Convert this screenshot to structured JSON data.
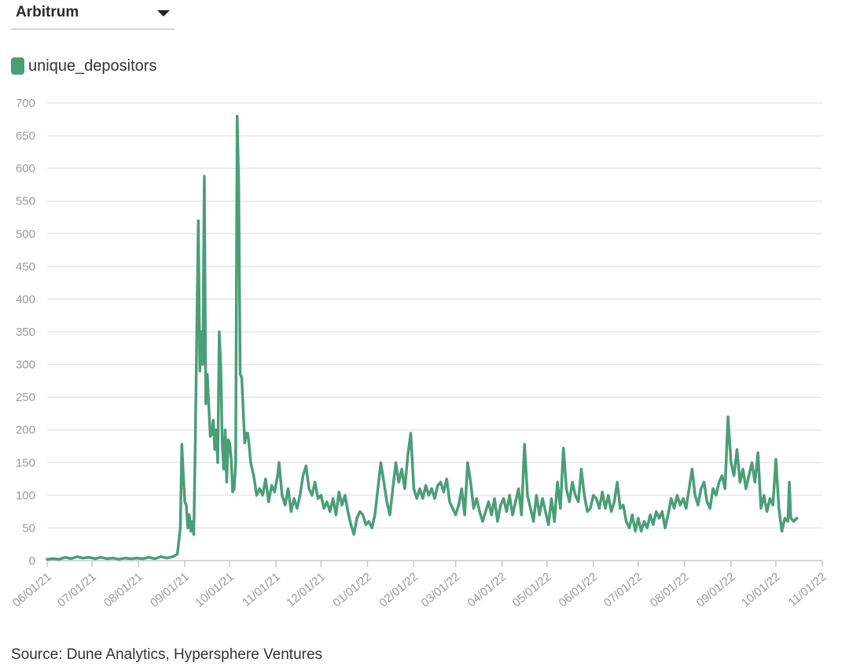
{
  "selector": {
    "value": "Arbitrum",
    "icon": "caret-down-icon"
  },
  "source": "Source: Dune Analytics, Hypersphere Ventures",
  "colors": {
    "series": "#4a9e78",
    "grid": "#e7e7e7",
    "axis": "#c8c8c8",
    "tick": "#9a9a9a"
  },
  "chart_data": {
    "type": "line",
    "title": "",
    "xlabel": "",
    "ylabel": "",
    "ylim": [
      0,
      700
    ],
    "yticks": [
      0,
      50,
      100,
      150,
      200,
      250,
      300,
      350,
      400,
      450,
      500,
      550,
      600,
      650,
      700
    ],
    "xlim": [
      "2021-06-01",
      "2022-11-01"
    ],
    "xticks": [
      "06/01/21",
      "07/01/21",
      "08/01/21",
      "09/01/21",
      "10/01/21",
      "11/01/21",
      "12/01/21",
      "01/01/22",
      "02/01/22",
      "03/01/22",
      "04/01/22",
      "05/01/22",
      "06/01/22",
      "07/01/22",
      "08/01/22",
      "09/01/22",
      "10/01/22",
      "11/01/22"
    ],
    "grid": true,
    "legend": "top-left",
    "series": [
      {
        "name": "unique_depositors",
        "points": [
          [
            "2021-06-01",
            2
          ],
          [
            "2021-06-05",
            3
          ],
          [
            "2021-06-09",
            2
          ],
          [
            "2021-06-13",
            5
          ],
          [
            "2021-06-17",
            3
          ],
          [
            "2021-06-21",
            6
          ],
          [
            "2021-06-25",
            4
          ],
          [
            "2021-06-29",
            5
          ],
          [
            "2021-07-03",
            3
          ],
          [
            "2021-07-07",
            5
          ],
          [
            "2021-07-11",
            3
          ],
          [
            "2021-07-15",
            4
          ],
          [
            "2021-07-19",
            2
          ],
          [
            "2021-07-23",
            4
          ],
          [
            "2021-07-27",
            3
          ],
          [
            "2021-07-31",
            4
          ],
          [
            "2021-08-04",
            3
          ],
          [
            "2021-08-08",
            5
          ],
          [
            "2021-08-12",
            3
          ],
          [
            "2021-08-16",
            6
          ],
          [
            "2021-08-20",
            4
          ],
          [
            "2021-08-24",
            6
          ],
          [
            "2021-08-27",
            10
          ],
          [
            "2021-08-29",
            50
          ],
          [
            "2021-08-30",
            178
          ],
          [
            "2021-08-31",
            130
          ],
          [
            "2021-09-01",
            90
          ],
          [
            "2021-09-02",
            85
          ],
          [
            "2021-09-03",
            50
          ],
          [
            "2021-09-04",
            70
          ],
          [
            "2021-09-05",
            45
          ],
          [
            "2021-09-06",
            60
          ],
          [
            "2021-09-07",
            40
          ],
          [
            "2021-09-08",
            180
          ],
          [
            "2021-09-10",
            520
          ],
          [
            "2021-09-11",
            290
          ],
          [
            "2021-09-12",
            350
          ],
          [
            "2021-09-13",
            300
          ],
          [
            "2021-09-14",
            588
          ],
          [
            "2021-09-15",
            240
          ],
          [
            "2021-09-16",
            285
          ],
          [
            "2021-09-18",
            190
          ],
          [
            "2021-09-19",
            195
          ],
          [
            "2021-09-20",
            215
          ],
          [
            "2021-09-21",
            170
          ],
          [
            "2021-09-22",
            200
          ],
          [
            "2021-09-23",
            150
          ],
          [
            "2021-09-24",
            350
          ],
          [
            "2021-09-25",
            300
          ],
          [
            "2021-09-26",
            180
          ],
          [
            "2021-09-27",
            140
          ],
          [
            "2021-09-28",
            200
          ],
          [
            "2021-09-29",
            120
          ],
          [
            "2021-09-30",
            185
          ],
          [
            "2021-10-01",
            180
          ],
          [
            "2021-10-02",
            155
          ],
          [
            "2021-10-03",
            105
          ],
          [
            "2021-10-04",
            110
          ],
          [
            "2021-10-05",
            150
          ],
          [
            "2021-10-06",
            680
          ],
          [
            "2021-10-07",
            580
          ],
          [
            "2021-10-08",
            285
          ],
          [
            "2021-10-09",
            280
          ],
          [
            "2021-10-10",
            230
          ],
          [
            "2021-10-11",
            180
          ],
          [
            "2021-10-12",
            195
          ],
          [
            "2021-10-13",
            195
          ],
          [
            "2021-10-14",
            175
          ],
          [
            "2021-10-15",
            150
          ],
          [
            "2021-10-17",
            130
          ],
          [
            "2021-10-19",
            100
          ],
          [
            "2021-10-21",
            110
          ],
          [
            "2021-10-23",
            100
          ],
          [
            "2021-10-25",
            125
          ],
          [
            "2021-10-27",
            90
          ],
          [
            "2021-10-29",
            115
          ],
          [
            "2021-10-31",
            105
          ],
          [
            "2021-11-02",
            130
          ],
          [
            "2021-11-03",
            150
          ],
          [
            "2021-11-05",
            100
          ],
          [
            "2021-11-07",
            85
          ],
          [
            "2021-11-09",
            110
          ],
          [
            "2021-11-11",
            75
          ],
          [
            "2021-11-13",
            95
          ],
          [
            "2021-11-15",
            80
          ],
          [
            "2021-11-17",
            100
          ],
          [
            "2021-11-19",
            130
          ],
          [
            "2021-11-21",
            145
          ],
          [
            "2021-11-23",
            110
          ],
          [
            "2021-11-25",
            100
          ],
          [
            "2021-11-27",
            120
          ],
          [
            "2021-11-29",
            95
          ],
          [
            "2021-12-01",
            100
          ],
          [
            "2021-12-03",
            80
          ],
          [
            "2021-12-05",
            90
          ],
          [
            "2021-12-07",
            75
          ],
          [
            "2021-12-09",
            95
          ],
          [
            "2021-12-11",
            70
          ],
          [
            "2021-12-13",
            105
          ],
          [
            "2021-12-15",
            85
          ],
          [
            "2021-12-17",
            100
          ],
          [
            "2021-12-19",
            75
          ],
          [
            "2021-12-21",
            55
          ],
          [
            "2021-12-23",
            40
          ],
          [
            "2021-12-25",
            65
          ],
          [
            "2021-12-27",
            75
          ],
          [
            "2021-12-29",
            70
          ],
          [
            "2021-12-31",
            55
          ],
          [
            "2022-01-02",
            60
          ],
          [
            "2022-01-04",
            50
          ],
          [
            "2022-01-06",
            70
          ],
          [
            "2022-01-08",
            110
          ],
          [
            "2022-01-10",
            150
          ],
          [
            "2022-01-12",
            120
          ],
          [
            "2022-01-14",
            90
          ],
          [
            "2022-01-16",
            70
          ],
          [
            "2022-01-18",
            110
          ],
          [
            "2022-01-20",
            150
          ],
          [
            "2022-01-22",
            120
          ],
          [
            "2022-01-24",
            140
          ],
          [
            "2022-01-26",
            110
          ],
          [
            "2022-01-28",
            160
          ],
          [
            "2022-01-30",
            195
          ],
          [
            "2022-02-01",
            110
          ],
          [
            "2022-02-03",
            95
          ],
          [
            "2022-02-05",
            110
          ],
          [
            "2022-02-07",
            95
          ],
          [
            "2022-02-09",
            115
          ],
          [
            "2022-02-11",
            100
          ],
          [
            "2022-02-13",
            110
          ],
          [
            "2022-02-15",
            95
          ],
          [
            "2022-02-17",
            115
          ],
          [
            "2022-02-19",
            120
          ],
          [
            "2022-02-21",
            105
          ],
          [
            "2022-02-23",
            125
          ],
          [
            "2022-02-25",
            90
          ],
          [
            "2022-02-27",
            80
          ],
          [
            "2022-03-01",
            70
          ],
          [
            "2022-03-03",
            85
          ],
          [
            "2022-03-05",
            110
          ],
          [
            "2022-03-07",
            70
          ],
          [
            "2022-03-09",
            150
          ],
          [
            "2022-03-11",
            120
          ],
          [
            "2022-03-13",
            80
          ],
          [
            "2022-03-15",
            95
          ],
          [
            "2022-03-17",
            75
          ],
          [
            "2022-03-19",
            60
          ],
          [
            "2022-03-21",
            75
          ],
          [
            "2022-03-23",
            90
          ],
          [
            "2022-03-25",
            70
          ],
          [
            "2022-03-27",
            95
          ],
          [
            "2022-03-29",
            60
          ],
          [
            "2022-03-31",
            85
          ],
          [
            "2022-04-02",
            95
          ],
          [
            "2022-04-04",
            75
          ],
          [
            "2022-04-06",
            100
          ],
          [
            "2022-04-08",
            70
          ],
          [
            "2022-04-10",
            90
          ],
          [
            "2022-04-12",
            110
          ],
          [
            "2022-04-14",
            70
          ],
          [
            "2022-04-16",
            178
          ],
          [
            "2022-04-18",
            100
          ],
          [
            "2022-04-20",
            80
          ],
          [
            "2022-04-22",
            60
          ],
          [
            "2022-04-24",
            100
          ],
          [
            "2022-04-26",
            70
          ],
          [
            "2022-04-28",
            95
          ],
          [
            "2022-04-30",
            75
          ],
          [
            "2022-05-02",
            55
          ],
          [
            "2022-05-04",
            95
          ],
          [
            "2022-05-06",
            60
          ],
          [
            "2022-05-08",
            120
          ],
          [
            "2022-05-10",
            80
          ],
          [
            "2022-05-12",
            172
          ],
          [
            "2022-05-14",
            110
          ],
          [
            "2022-05-16",
            90
          ],
          [
            "2022-05-18",
            120
          ],
          [
            "2022-05-20",
            100
          ],
          [
            "2022-05-22",
            90
          ],
          [
            "2022-05-24",
            140
          ],
          [
            "2022-05-26",
            100
          ],
          [
            "2022-05-28",
            75
          ],
          [
            "2022-05-30",
            80
          ],
          [
            "2022-06-01",
            100
          ],
          [
            "2022-06-03",
            95
          ],
          [
            "2022-06-05",
            80
          ],
          [
            "2022-06-07",
            105
          ],
          [
            "2022-06-09",
            80
          ],
          [
            "2022-06-11",
            100
          ],
          [
            "2022-06-13",
            75
          ],
          [
            "2022-06-15",
            90
          ],
          [
            "2022-06-17",
            120
          ],
          [
            "2022-06-19",
            80
          ],
          [
            "2022-06-21",
            85
          ],
          [
            "2022-06-23",
            60
          ],
          [
            "2022-06-25",
            50
          ],
          [
            "2022-06-27",
            70
          ],
          [
            "2022-06-29",
            45
          ],
          [
            "2022-07-01",
            65
          ],
          [
            "2022-07-03",
            45
          ],
          [
            "2022-07-05",
            60
          ],
          [
            "2022-07-07",
            50
          ],
          [
            "2022-07-09",
            70
          ],
          [
            "2022-07-11",
            55
          ],
          [
            "2022-07-13",
            75
          ],
          [
            "2022-07-15",
            65
          ],
          [
            "2022-07-17",
            75
          ],
          [
            "2022-07-19",
            50
          ],
          [
            "2022-07-21",
            70
          ],
          [
            "2022-07-23",
            95
          ],
          [
            "2022-07-25",
            80
          ],
          [
            "2022-07-27",
            100
          ],
          [
            "2022-07-29",
            85
          ],
          [
            "2022-07-31",
            95
          ],
          [
            "2022-08-02",
            80
          ],
          [
            "2022-08-04",
            110
          ],
          [
            "2022-08-06",
            140
          ],
          [
            "2022-08-08",
            100
          ],
          [
            "2022-08-10",
            85
          ],
          [
            "2022-08-12",
            110
          ],
          [
            "2022-08-14",
            120
          ],
          [
            "2022-08-16",
            90
          ],
          [
            "2022-08-18",
            80
          ],
          [
            "2022-08-20",
            110
          ],
          [
            "2022-08-22",
            100
          ],
          [
            "2022-08-24",
            120
          ],
          [
            "2022-08-26",
            130
          ],
          [
            "2022-08-28",
            110
          ],
          [
            "2022-08-30",
            220
          ],
          [
            "2022-09-01",
            150
          ],
          [
            "2022-09-03",
            130
          ],
          [
            "2022-09-05",
            170
          ],
          [
            "2022-09-07",
            120
          ],
          [
            "2022-09-09",
            140
          ],
          [
            "2022-09-11",
            110
          ],
          [
            "2022-09-13",
            130
          ],
          [
            "2022-09-15",
            150
          ],
          [
            "2022-09-17",
            120
          ],
          [
            "2022-09-19",
            165
          ],
          [
            "2022-09-21",
            80
          ],
          [
            "2022-09-23",
            100
          ],
          [
            "2022-09-25",
            75
          ],
          [
            "2022-09-27",
            95
          ],
          [
            "2022-09-29",
            85
          ],
          [
            "2022-10-01",
            155
          ],
          [
            "2022-10-03",
            80
          ],
          [
            "2022-10-05",
            45
          ],
          [
            "2022-10-07",
            65
          ],
          [
            "2022-10-09",
            60
          ],
          [
            "2022-10-10",
            120
          ],
          [
            "2022-10-11",
            65
          ],
          [
            "2022-10-13",
            60
          ],
          [
            "2022-10-15",
            65
          ]
        ]
      }
    ]
  }
}
